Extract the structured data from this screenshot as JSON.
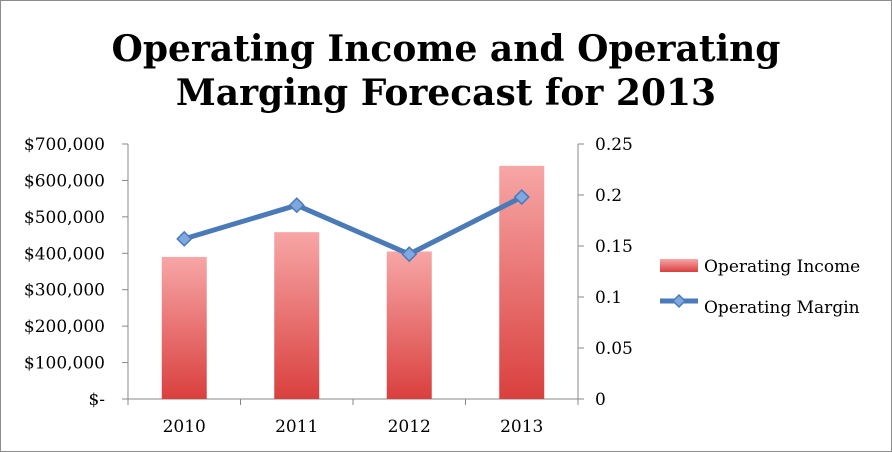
{
  "chart_data": {
    "type": "bar",
    "title_lines": [
      "Operating Income and Operating",
      "Marging Forecast for 2013"
    ],
    "categories": [
      "2010",
      "2011",
      "2012",
      "2013"
    ],
    "series": [
      {
        "name": "Operating Income",
        "type": "bar",
        "axis": "left",
        "values": [
          390000,
          458000,
          405000,
          640000
        ]
      },
      {
        "name": "Operating Margin",
        "type": "line",
        "axis": "right",
        "values": [
          0.157,
          0.19,
          0.142,
          0.198
        ]
      }
    ],
    "y_left": {
      "ylim": [
        0,
        700000
      ],
      "tick_labels": [
        "$-",
        "$100,000",
        "$200,000",
        "$300,000",
        "$400,000",
        "$500,000",
        "$600,000",
        "$700,000"
      ]
    },
    "y_right": {
      "ylim": [
        0,
        0.25
      ],
      "tick_labels": [
        "0",
        "0.05",
        "0.1",
        "0.15",
        "0.2",
        "0.25"
      ]
    },
    "grid": false,
    "legend_position": "right",
    "colors": {
      "bar_top": "#f7a6a6",
      "bar_bottom": "#d9403e",
      "line": "#4a7ab8",
      "marker_fill": "#7fa8e0",
      "axis": "#888888"
    }
  }
}
